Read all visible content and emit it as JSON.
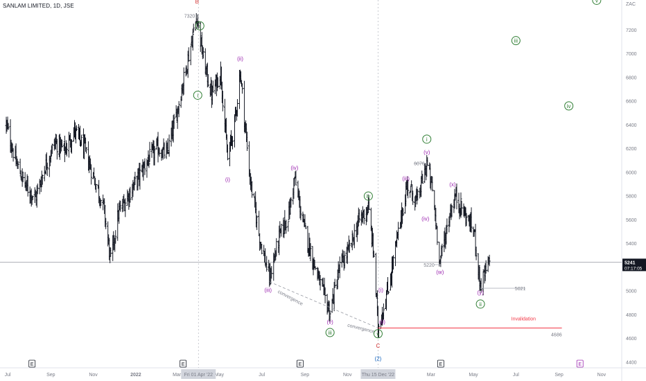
{
  "symbol": "SANLAM LIMITED, 1D, JSE",
  "currency": "ZAC",
  "colors": {
    "wave_primary": "#2e7d32",
    "wave_minor": "#9c27b0",
    "wave_major": "#d32f2f",
    "wave_cycle": "#1565c0",
    "invalidation": "#f23645",
    "candles": "#131722"
  },
  "chart_data": {
    "type": "bar",
    "subtype": "ohlc",
    "y_axis": {
      "ticks": [
        4400,
        4600,
        4800,
        5000,
        5200,
        5400,
        5600,
        5800,
        6000,
        6200,
        6400,
        6600,
        6800,
        7000,
        7200
      ],
      "range": [
        4350,
        7450
      ]
    },
    "x_axis": {
      "ticks": [
        "Jul",
        "Sep",
        "Nov",
        "2022",
        "Mar",
        "May",
        "Jul",
        "Sep",
        "Nov",
        "Mar",
        "May",
        "Jul",
        "Sep",
        "Nov"
      ]
    },
    "crosshair_date_labels": [
      "Fri 01 Apr '22",
      "Thu 15 Dec '22"
    ],
    "last_price": {
      "value": "5241",
      "countdown": "07:17:05"
    },
    "earnings_markers": [
      "E",
      "E",
      "E",
      "E",
      "E"
    ],
    "series": [
      {
        "t": "2021-06-29",
        "c": 6400
      },
      {
        "t": "2021-07-13",
        "c": 6080
      },
      {
        "t": "2021-07-27",
        "c": 5880
      },
      {
        "t": "2021-08-10",
        "c": 5780
      },
      {
        "t": "2021-08-24",
        "c": 6050
      },
      {
        "t": "2021-09-07",
        "c": 6250
      },
      {
        "t": "2021-09-21",
        "c": 6180
      },
      {
        "t": "2021-10-05",
        "c": 6350
      },
      {
        "t": "2021-10-19",
        "c": 6200
      },
      {
        "t": "2021-11-02",
        "c": 5950
      },
      {
        "t": "2021-11-16",
        "c": 5700
      },
      {
        "t": "2021-11-26",
        "c": 5250
      },
      {
        "t": "2021-12-07",
        "c": 5650
      },
      {
        "t": "2021-12-21",
        "c": 5800
      },
      {
        "t": "2022-01-04",
        "c": 5950
      },
      {
        "t": "2022-01-18",
        "c": 6100
      },
      {
        "t": "2022-02-01",
        "c": 6200
      },
      {
        "t": "2022-02-15",
        "c": 6150
      },
      {
        "t": "2022-03-01",
        "c": 6500
      },
      {
        "t": "2022-03-15",
        "c": 6900
      },
      {
        "t": "2022-03-30",
        "c": 7320
      },
      {
        "t": "2022-04-08",
        "c": 6950
      },
      {
        "t": "2022-04-20",
        "c": 6650
      },
      {
        "t": "2022-05-03",
        "c": 6850
      },
      {
        "t": "2022-05-13",
        "c": 6100
      },
      {
        "t": "2022-05-24",
        "c": 6450
      },
      {
        "t": "2022-05-31",
        "c": 6850
      },
      {
        "t": "2022-06-14",
        "c": 5950
      },
      {
        "t": "2022-06-28",
        "c": 5450
      },
      {
        "t": "2022-07-12",
        "c": 5100
      },
      {
        "t": "2022-07-26",
        "c": 5450
      },
      {
        "t": "2022-08-09",
        "c": 5650
      },
      {
        "t": "2022-08-17",
        "c": 5950
      },
      {
        "t": "2022-08-30",
        "c": 5550
      },
      {
        "t": "2022-09-13",
        "c": 5250
      },
      {
        "t": "2022-09-27",
        "c": 4980
      },
      {
        "t": "2022-10-07",
        "c": 4820
      },
      {
        "t": "2022-10-21",
        "c": 5200
      },
      {
        "t": "2022-11-04",
        "c": 5350
      },
      {
        "t": "2022-11-18",
        "c": 5600
      },
      {
        "t": "2022-12-01",
        "c": 5700
      },
      {
        "t": "2022-12-09",
        "c": 5300
      },
      {
        "t": "2022-12-15",
        "c": 4686
      },
      {
        "t": "2022-12-29",
        "c": 5000
      },
      {
        "t": "2023-01-12",
        "c": 5450
      },
      {
        "t": "2023-01-26",
        "c": 5900
      },
      {
        "t": "2023-02-09",
        "c": 5750
      },
      {
        "t": "2023-02-23",
        "c": 6076
      },
      {
        "t": "2023-03-03",
        "c": 5850
      },
      {
        "t": "2023-03-14",
        "c": 5250
      },
      {
        "t": "2023-03-28",
        "c": 5650
      },
      {
        "t": "2023-04-05",
        "c": 5800
      },
      {
        "t": "2023-04-18",
        "c": 5650
      },
      {
        "t": "2023-05-02",
        "c": 5500
      },
      {
        "t": "2023-05-11",
        "c": 5040
      },
      {
        "t": "2023-05-24",
        "c": 5241
      }
    ],
    "annotations": {
      "price_labels": [
        {
          "text": "7320",
          "t": "2022-03-30",
          "y": 7320
        },
        {
          "text": "6076",
          "t": "2023-02-23",
          "y": 6076
        },
        {
          "text": "5220",
          "t": "2023-03-14",
          "y": 5220
        },
        {
          "text": "5021",
          "t": "2023-05-11",
          "y": 5021
        },
        {
          "text": "4686",
          "t": "2022-12-15",
          "y": 4686
        }
      ],
      "waves": [
        {
          "text": "B",
          "t": "2022-03-30",
          "y": 7420,
          "style": "major"
        },
        {
          "text": "ii",
          "t": "2022-04-03",
          "y": 7215,
          "style": "primary-circle"
        },
        {
          "text": "i",
          "t": "2022-03-31",
          "y": 6630,
          "style": "primary-circle"
        },
        {
          "text": "ii",
          "t": "2022-05-31",
          "y": 6940,
          "style": "minor"
        },
        {
          "text": "i",
          "t": "2022-05-13",
          "y": 5920,
          "style": "minor"
        },
        {
          "text": "iii",
          "t": "2022-07-10",
          "y": 4990,
          "style": "minor"
        },
        {
          "text": "iv",
          "t": "2022-08-17",
          "y": 6020,
          "style": "minor"
        },
        {
          "text": "v",
          "t": "2022-10-07",
          "y": 4720,
          "style": "minor"
        },
        {
          "text": "iii",
          "t": "2022-10-07",
          "y": 4630,
          "style": "primary-circle"
        },
        {
          "text": "iv",
          "t": "2022-12-01",
          "y": 5780,
          "style": "primary-circle"
        },
        {
          "text": "i",
          "t": "2022-12-19",
          "y": 4990,
          "style": "minor"
        },
        {
          "text": "ii",
          "t": "2022-12-21",
          "y": 4720,
          "style": "minor"
        },
        {
          "text": "v",
          "t": "2022-12-15",
          "y": 4620,
          "style": "primary-circle"
        },
        {
          "text": "C",
          "t": "2022-12-15",
          "y": 4520,
          "style": "major"
        },
        {
          "text": "2",
          "t": "2022-12-15",
          "y": 4410,
          "style": "cycle"
        },
        {
          "text": "iii",
          "t": "2023-01-24",
          "y": 5930,
          "style": "minor"
        },
        {
          "text": "v",
          "t": "2023-02-23",
          "y": 6150,
          "style": "minor"
        },
        {
          "text": "i",
          "t": "2023-02-23",
          "y": 6260,
          "style": "primary-circle"
        },
        {
          "text": "iv",
          "t": "2023-02-21",
          "y": 5590,
          "style": "minor"
        },
        {
          "text": "w",
          "t": "2023-03-14",
          "y": 5140,
          "style": "minor"
        },
        {
          "text": "x",
          "t": "2023-04-01",
          "y": 5880,
          "style": "minor"
        },
        {
          "text": "y",
          "t": "2023-05-11",
          "y": 4970,
          "style": "minor"
        },
        {
          "text": "ii",
          "t": "2023-05-11",
          "y": 4870,
          "style": "primary-circle"
        },
        {
          "text": "iii",
          "t": "2023-07-01",
          "y": 7090,
          "style": "primary-circle"
        },
        {
          "text": "iv",
          "t": "2023-09-15",
          "y": 6540,
          "style": "primary-circle"
        },
        {
          "text": "v",
          "t": "2023-10-25",
          "y": 7430,
          "style": "primary-circle"
        }
      ],
      "texts": [
        {
          "text": "convergence",
          "t": "2022-08-10",
          "y": 4930,
          "rot": 28
        },
        {
          "text": "convergence",
          "t": "2022-11-20",
          "y": 4670,
          "rot": 14
        },
        {
          "text": "Invalidation",
          "t": "2023-07-12",
          "y": 4750,
          "rot": 0
        }
      ],
      "invalidation_level": {
        "y": 4686,
        "from": "2022-12-15",
        "to": "2023-09-05"
      },
      "convergence_line": [
        {
          "t": "2022-07-12",
          "y": 5075
        },
        {
          "t": "2022-12-15",
          "y": 4686
        }
      ]
    }
  }
}
